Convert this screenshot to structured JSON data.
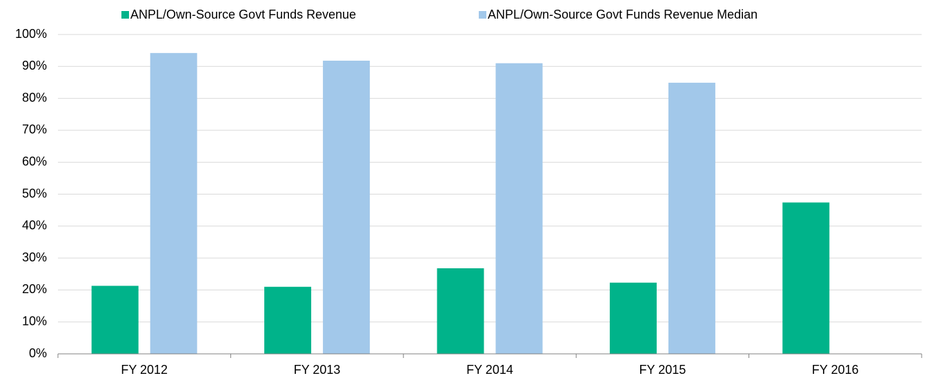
{
  "chart_data": {
    "type": "bar",
    "categories": [
      "FY 2012",
      "FY 2013",
      "FY 2014",
      "FY 2015",
      "FY 2016"
    ],
    "series": [
      {
        "name": "ANPL/Own-Source Govt Funds Revenue",
        "color": "#00b38a",
        "values": [
          21.3,
          21.0,
          26.8,
          22.3,
          47.4
        ]
      },
      {
        "name": "ANPL/Own-Source Govt Funds Revenue Median",
        "color": "#a2c8ea",
        "values": [
          94.2,
          91.8,
          91.0,
          84.9,
          null
        ]
      }
    ],
    "ylim": [
      0,
      100
    ],
    "yticks": [
      {
        "value": 0,
        "label": "0%"
      },
      {
        "value": 10,
        "label": "10%"
      },
      {
        "value": 20,
        "label": "20%"
      },
      {
        "value": 30,
        "label": "30%"
      },
      {
        "value": 40,
        "label": "40%"
      },
      {
        "value": 50,
        "label": "50%"
      },
      {
        "value": 60,
        "label": "60%"
      },
      {
        "value": 70,
        "label": "70%"
      },
      {
        "value": 80,
        "label": "80%"
      },
      {
        "value": 90,
        "label": "90%"
      },
      {
        "value": 100,
        "label": "100%"
      }
    ],
    "grid": true,
    "legend": "top"
  }
}
